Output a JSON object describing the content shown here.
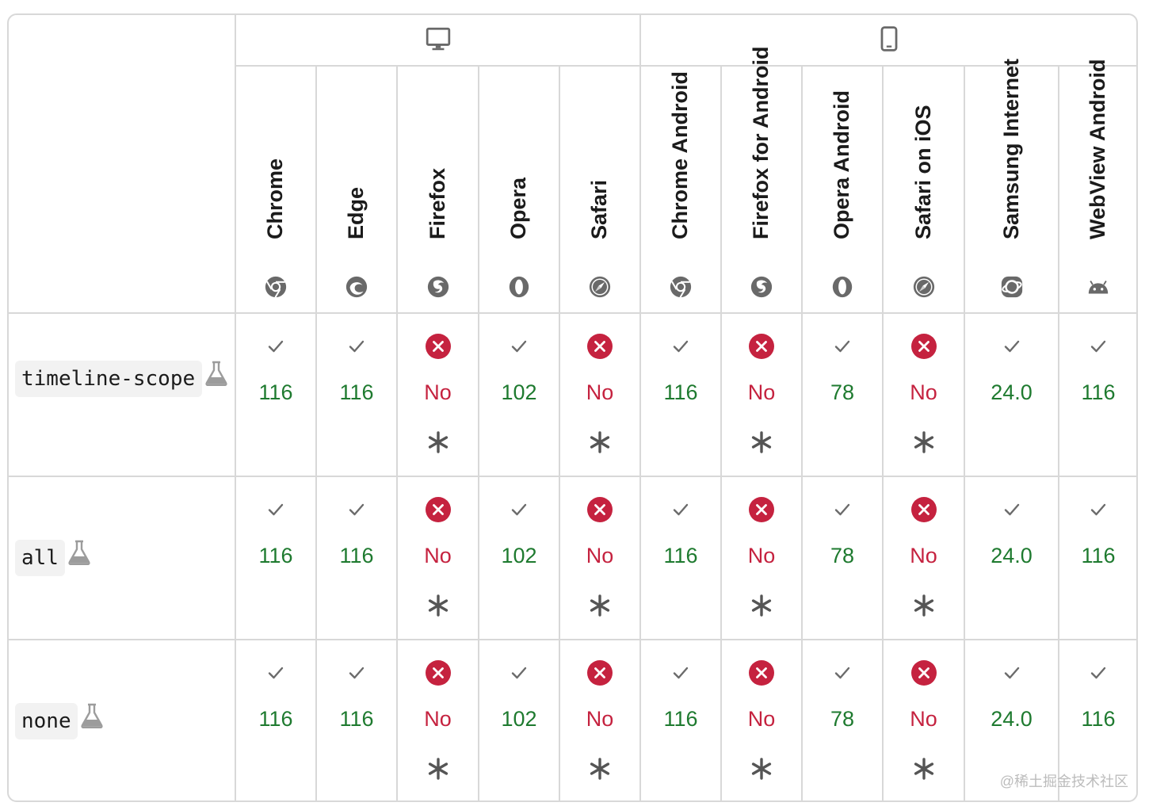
{
  "platforms": [
    {
      "icon": "desktop-icon"
    },
    {
      "icon": "mobile-icon"
    }
  ],
  "browsers": [
    {
      "name": "Chrome",
      "icon": "chrome-icon"
    },
    {
      "name": "Edge",
      "icon": "edge-icon"
    },
    {
      "name": "Firefox",
      "icon": "firefox-icon"
    },
    {
      "name": "Opera",
      "icon": "opera-icon"
    },
    {
      "name": "Safari",
      "icon": "safari-icon"
    },
    {
      "name": "Chrome Android",
      "icon": "chrome-icon"
    },
    {
      "name": "Firefox for Android",
      "icon": "firefox-icon"
    },
    {
      "name": "Opera Android",
      "icon": "opera-icon"
    },
    {
      "name": "Safari on iOS",
      "icon": "safari-icon"
    },
    {
      "name": "Samsung Internet",
      "icon": "samsung-internet-icon"
    },
    {
      "name": "WebView Android",
      "icon": "android-icon"
    }
  ],
  "rows": [
    {
      "feature": "timeline-scope",
      "experimental": true,
      "support": [
        {
          "version": "116",
          "supported": true,
          "note": false
        },
        {
          "version": "116",
          "supported": true,
          "note": false
        },
        {
          "version": "No",
          "supported": false,
          "note": true
        },
        {
          "version": "102",
          "supported": true,
          "note": false
        },
        {
          "version": "No",
          "supported": false,
          "note": true
        },
        {
          "version": "116",
          "supported": true,
          "note": false
        },
        {
          "version": "No",
          "supported": false,
          "note": true
        },
        {
          "version": "78",
          "supported": true,
          "note": false
        },
        {
          "version": "No",
          "supported": false,
          "note": true
        },
        {
          "version": "24.0",
          "supported": true,
          "note": false
        },
        {
          "version": "116",
          "supported": true,
          "note": false
        }
      ]
    },
    {
      "feature": "all",
      "experimental": true,
      "support": [
        {
          "version": "116",
          "supported": true,
          "note": false
        },
        {
          "version": "116",
          "supported": true,
          "note": false
        },
        {
          "version": "No",
          "supported": false,
          "note": true
        },
        {
          "version": "102",
          "supported": true,
          "note": false
        },
        {
          "version": "No",
          "supported": false,
          "note": true
        },
        {
          "version": "116",
          "supported": true,
          "note": false
        },
        {
          "version": "No",
          "supported": false,
          "note": true
        },
        {
          "version": "78",
          "supported": true,
          "note": false
        },
        {
          "version": "No",
          "supported": false,
          "note": true
        },
        {
          "version": "24.0",
          "supported": true,
          "note": false
        },
        {
          "version": "116",
          "supported": true,
          "note": false
        }
      ]
    },
    {
      "feature": "none",
      "experimental": true,
      "support": [
        {
          "version": "116",
          "supported": true,
          "note": false
        },
        {
          "version": "116",
          "supported": true,
          "note": false
        },
        {
          "version": "No",
          "supported": false,
          "note": true
        },
        {
          "version": "102",
          "supported": true,
          "note": false
        },
        {
          "version": "No",
          "supported": false,
          "note": true
        },
        {
          "version": "116",
          "supported": true,
          "note": false
        },
        {
          "version": "No",
          "supported": false,
          "note": true
        },
        {
          "version": "78",
          "supported": true,
          "note": false
        },
        {
          "version": "No",
          "supported": false,
          "note": true
        },
        {
          "version": "24.0",
          "supported": true,
          "note": false
        },
        {
          "version": "116",
          "supported": true,
          "note": false
        }
      ]
    }
  ],
  "colors": {
    "supported": "#1e7a2f",
    "unsupported": "#c5223f",
    "border": "#d8d8d8",
    "check": "#6b6b6b",
    "icon_gray": "#696969"
  },
  "watermark": "@稀土掘金技术社区"
}
